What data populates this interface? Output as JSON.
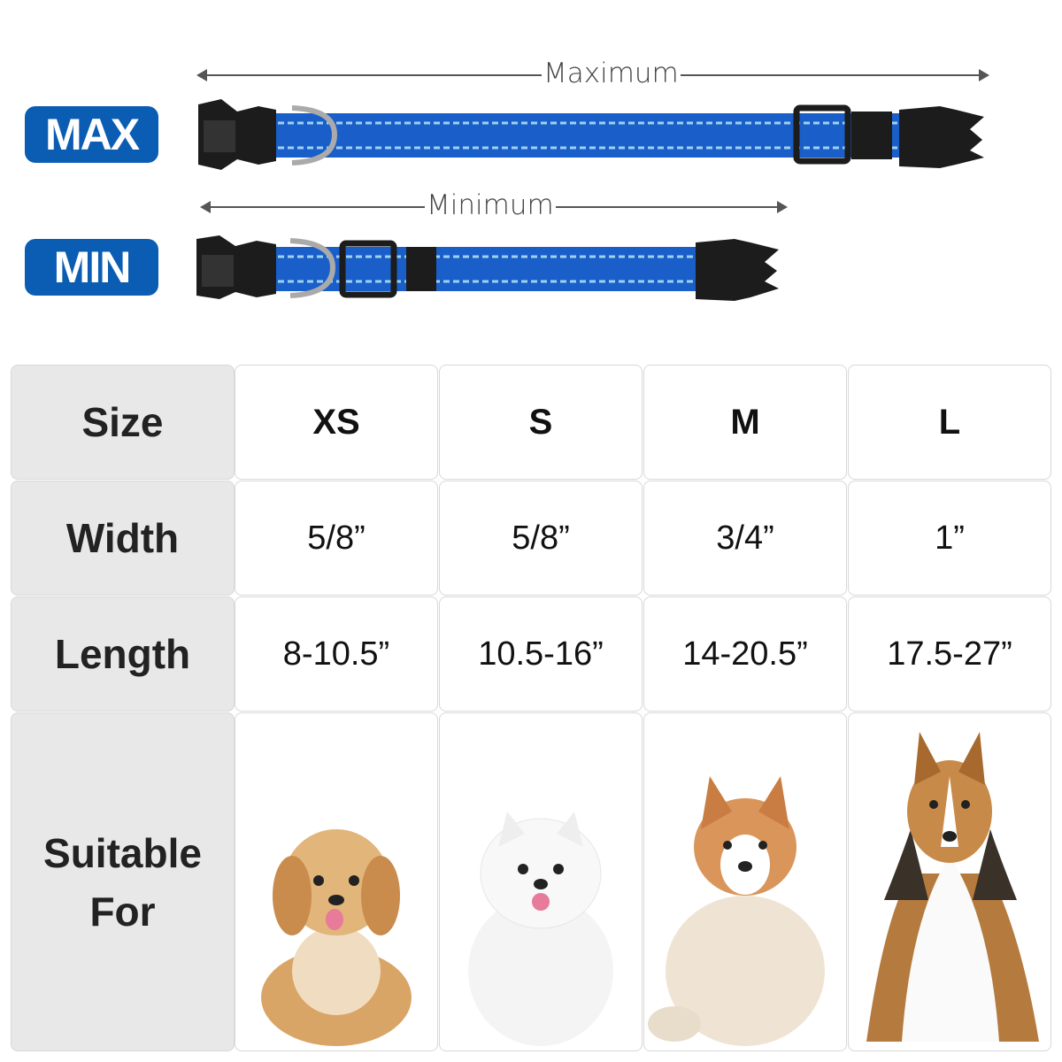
{
  "badges": {
    "max": "MAX",
    "min": "MIN"
  },
  "arrows": {
    "maximum": "Maximum",
    "minimum": "Minimum"
  },
  "colors": {
    "badge": "#0a5db3",
    "strap": "#1a5fc9",
    "stitch": "#9fd2f0",
    "hardware": "#1c1c1c"
  },
  "table": {
    "row_headers": {
      "size": "Size",
      "width": "Width",
      "length": "Length",
      "suitable_1": "Suitable",
      "suitable_2": "For"
    },
    "columns": [
      {
        "size": "XS",
        "width": "5/8”",
        "length": "8-10.5”",
        "dog": "small-fluffy-puppy"
      },
      {
        "size": "S",
        "width": "5/8”",
        "length": "10.5-16”",
        "dog": "white-pomeranian"
      },
      {
        "size": "M",
        "width": "3/4”",
        "length": "14-20.5”",
        "dog": "husky-mix"
      },
      {
        "size": "L",
        "width": "1”",
        "length": "17.5-27”",
        "dog": "sheltie-collie"
      }
    ]
  }
}
